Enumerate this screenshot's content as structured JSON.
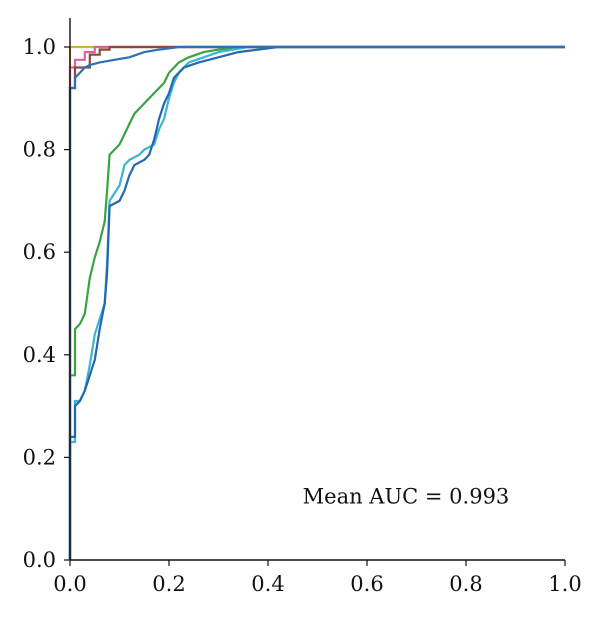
{
  "chart_data": {
    "type": "line",
    "title": "",
    "xlabel": "",
    "ylabel": "",
    "xlim": [
      0.0,
      1.0
    ],
    "ylim": [
      0.0,
      1.0
    ],
    "grid": false,
    "legend": "none",
    "x_ticks": [
      "0.0",
      "0.2",
      "0.4",
      "0.6",
      "0.8",
      "1.0"
    ],
    "y_ticks": [
      "0.0",
      "0.2",
      "0.4",
      "0.6",
      "0.8",
      "1.0"
    ],
    "annotations": [
      {
        "text": "Mean AUC = 0.993",
        "x": 0.47,
        "y": 0.11
      }
    ],
    "series": [
      {
        "color": "#c9b838",
        "points": [
          [
            0.0,
            0.0
          ],
          [
            0.0,
            1.0
          ],
          [
            1.0,
            1.0
          ]
        ]
      },
      {
        "color": "#e0609e",
        "points": [
          [
            0.0,
            0.0
          ],
          [
            0.0,
            0.96
          ],
          [
            0.01,
            0.96
          ],
          [
            0.01,
            0.975
          ],
          [
            0.03,
            0.975
          ],
          [
            0.03,
            0.99
          ],
          [
            0.05,
            0.99
          ],
          [
            0.05,
            1.0
          ],
          [
            1.0,
            1.0
          ]
        ]
      },
      {
        "color": "#8b4a40",
        "points": [
          [
            0.0,
            0.0
          ],
          [
            0.0,
            0.92
          ],
          [
            0.01,
            0.92
          ],
          [
            0.01,
            0.96
          ],
          [
            0.04,
            0.96
          ],
          [
            0.04,
            0.985
          ],
          [
            0.06,
            0.985
          ],
          [
            0.06,
            0.995
          ],
          [
            0.08,
            0.995
          ],
          [
            0.08,
            1.0
          ],
          [
            1.0,
            1.0
          ]
        ]
      },
      {
        "color": "#3aa341",
        "points": [
          [
            0.0,
            0.0
          ],
          [
            0.0,
            0.36
          ],
          [
            0.01,
            0.36
          ],
          [
            0.01,
            0.45
          ],
          [
            0.02,
            0.46
          ],
          [
            0.03,
            0.48
          ],
          [
            0.04,
            0.55
          ],
          [
            0.05,
            0.59
          ],
          [
            0.06,
            0.62
          ],
          [
            0.07,
            0.66
          ],
          [
            0.075,
            0.72
          ],
          [
            0.08,
            0.79
          ],
          [
            0.1,
            0.81
          ],
          [
            0.11,
            0.83
          ],
          [
            0.12,
            0.85
          ],
          [
            0.13,
            0.87
          ],
          [
            0.15,
            0.89
          ],
          [
            0.16,
            0.9
          ],
          [
            0.18,
            0.92
          ],
          [
            0.19,
            0.93
          ],
          [
            0.2,
            0.95
          ],
          [
            0.22,
            0.97
          ],
          [
            0.24,
            0.98
          ],
          [
            0.27,
            0.99
          ],
          [
            0.3,
            0.995
          ],
          [
            0.34,
            1.0
          ],
          [
            1.0,
            1.0
          ]
        ]
      },
      {
        "color": "#3bb5d0",
        "points": [
          [
            0.0,
            0.0
          ],
          [
            0.0,
            0.23
          ],
          [
            0.01,
            0.23
          ],
          [
            0.01,
            0.31
          ],
          [
            0.02,
            0.31
          ],
          [
            0.03,
            0.33
          ],
          [
            0.04,
            0.38
          ],
          [
            0.05,
            0.44
          ],
          [
            0.06,
            0.47
          ],
          [
            0.07,
            0.5
          ],
          [
            0.075,
            0.58
          ],
          [
            0.08,
            0.7
          ],
          [
            0.1,
            0.73
          ],
          [
            0.11,
            0.77
          ],
          [
            0.12,
            0.78
          ],
          [
            0.14,
            0.79
          ],
          [
            0.15,
            0.8
          ],
          [
            0.17,
            0.81
          ],
          [
            0.18,
            0.84
          ],
          [
            0.19,
            0.86
          ],
          [
            0.2,
            0.9
          ],
          [
            0.21,
            0.93
          ],
          [
            0.22,
            0.95
          ],
          [
            0.24,
            0.97
          ],
          [
            0.27,
            0.98
          ],
          [
            0.3,
            0.99
          ],
          [
            0.36,
            1.0
          ],
          [
            1.0,
            1.0
          ]
        ]
      },
      {
        "color": "#2468b0",
        "points": [
          [
            0.0,
            0.0
          ],
          [
            0.0,
            0.24
          ],
          [
            0.01,
            0.24
          ],
          [
            0.01,
            0.3
          ],
          [
            0.02,
            0.31
          ],
          [
            0.03,
            0.33
          ],
          [
            0.04,
            0.36
          ],
          [
            0.05,
            0.39
          ],
          [
            0.06,
            0.45
          ],
          [
            0.07,
            0.5
          ],
          [
            0.075,
            0.56
          ],
          [
            0.08,
            0.69
          ],
          [
            0.1,
            0.7
          ],
          [
            0.11,
            0.72
          ],
          [
            0.12,
            0.75
          ],
          [
            0.13,
            0.77
          ],
          [
            0.15,
            0.78
          ],
          [
            0.16,
            0.79
          ],
          [
            0.17,
            0.82
          ],
          [
            0.18,
            0.86
          ],
          [
            0.19,
            0.89
          ],
          [
            0.2,
            0.91
          ],
          [
            0.21,
            0.94
          ],
          [
            0.23,
            0.96
          ],
          [
            0.26,
            0.97
          ],
          [
            0.3,
            0.98
          ],
          [
            0.34,
            0.99
          ],
          [
            0.38,
            0.995
          ],
          [
            0.42,
            1.0
          ],
          [
            1.0,
            1.0
          ]
        ]
      },
      {
        "color": "#2f6fb8",
        "points": [
          [
            0.0,
            0.0
          ],
          [
            0.0,
            0.92
          ],
          [
            0.01,
            0.92
          ],
          [
            0.01,
            0.94
          ],
          [
            0.02,
            0.95
          ],
          [
            0.03,
            0.96
          ],
          [
            0.04,
            0.965
          ],
          [
            0.06,
            0.97
          ],
          [
            0.09,
            0.975
          ],
          [
            0.12,
            0.98
          ],
          [
            0.15,
            0.99
          ],
          [
            0.18,
            0.995
          ],
          [
            0.22,
            1.0
          ],
          [
            1.0,
            1.0
          ]
        ]
      }
    ]
  }
}
